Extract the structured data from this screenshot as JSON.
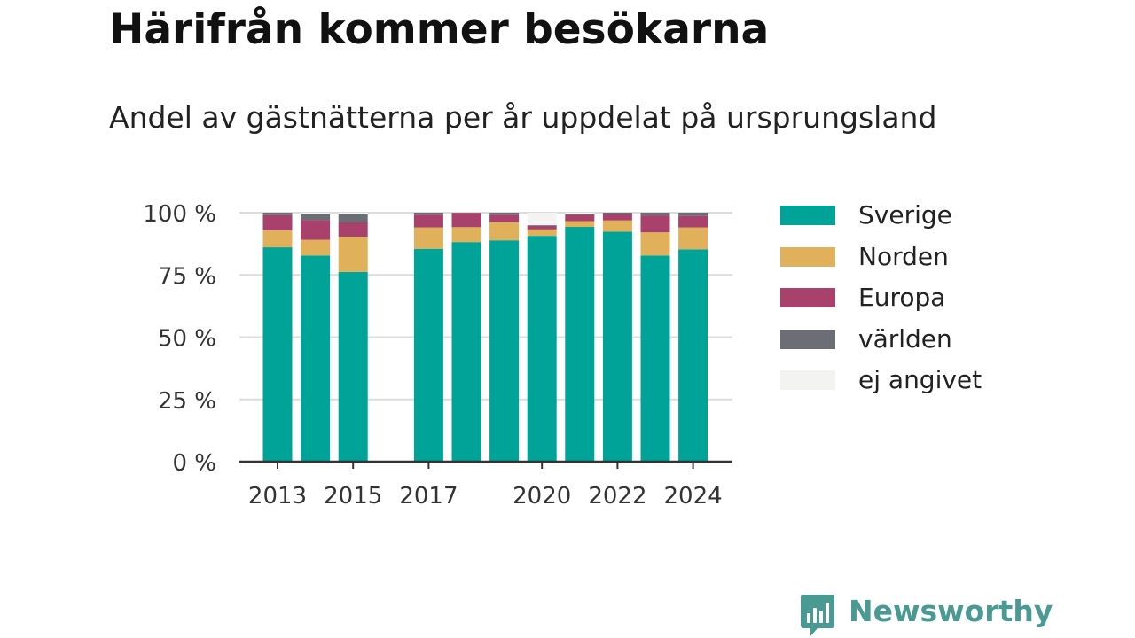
{
  "chart_data": {
    "type": "bar",
    "stacked": true,
    "title": "Härifrån kommer besökarna",
    "subtitle": "Andel av gästnätterna per år uppdelat på ursprungsland",
    "categories": [
      "2013",
      "2014",
      "2015",
      "2016",
      "2017",
      "2018",
      "2019",
      "2020",
      "2021",
      "2022",
      "2023",
      "2024"
    ],
    "xticks": [
      "2013",
      "2015",
      "2017",
      "2020",
      "2022",
      "2024"
    ],
    "yticks": [
      0,
      25,
      50,
      75,
      100
    ],
    "ytick_labels": [
      "0 %",
      "25 %",
      "50 %",
      "75 %",
      "100 %"
    ],
    "ylim": [
      0,
      100
    ],
    "grid": true,
    "legend_position": "right",
    "series": [
      {
        "name": "Sverige",
        "color": "#00a398",
        "values": [
          86.1,
          82.8,
          76.2,
          null,
          85.5,
          88.2,
          88.9,
          90.7,
          94.3,
          92.4,
          82.8,
          85.3
        ]
      },
      {
        "name": "Norden",
        "color": "#e0b05a",
        "values": [
          6.8,
          6.3,
          14.1,
          null,
          8.6,
          6.0,
          7.3,
          2.6,
          2.3,
          4.5,
          9.3,
          8.8
        ]
      },
      {
        "name": "Europa",
        "color": "#a8416c",
        "values": [
          6.1,
          7.9,
          5.8,
          null,
          5.1,
          5.7,
          3.0,
          1.4,
          2.5,
          2.5,
          6.8,
          4.6
        ]
      },
      {
        "name": "världen",
        "color": "#6d6e75",
        "values": [
          1.0,
          2.5,
          3.2,
          null,
          0.8,
          0.1,
          0.8,
          0.3,
          0.4,
          0.6,
          1.1,
          1.3
        ]
      },
      {
        "name": "ej angivet",
        "color": "#f3f3f2",
        "values": [
          0.0,
          0.5,
          0.7,
          null,
          0.0,
          0.0,
          0.0,
          5.0,
          0.5,
          0.0,
          0.0,
          0.0
        ]
      }
    ]
  },
  "brand": {
    "name": "Newsworthy",
    "color": "#4a9a94"
  }
}
